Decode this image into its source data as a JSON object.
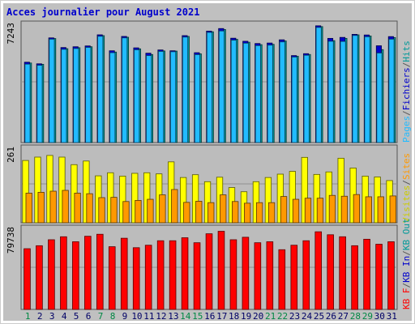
{
  "chart_data": {
    "type": "bar",
    "title": "Acces journalier pour August 2021",
    "categories": [
      "1",
      "2",
      "3",
      "4",
      "5",
      "6",
      "7",
      "8",
      "9",
      "10",
      "11",
      "12",
      "13",
      "14",
      "15",
      "16",
      "17",
      "18",
      "19",
      "20",
      "21",
      "22",
      "23",
      "24",
      "25",
      "26",
      "27",
      "28",
      "29",
      "30",
      "31"
    ],
    "weekend_days": [
      "1",
      "7",
      "8",
      "14",
      "15",
      "21",
      "22",
      "28",
      "29"
    ],
    "panels": [
      {
        "max_label": "7243",
        "ylim": [
          0,
          7243
        ],
        "legend": [
          "Pages",
          "/",
          "Fichiers",
          "/",
          "Hits"
        ],
        "series": [
          {
            "name": "Hits",
            "color": "#009999",
            "values": [
              4940,
              4860,
              6460,
              5830,
              5890,
              5950,
              6640,
              5620,
              6540,
              5820,
              5470,
              5690,
              5680,
              6590,
              5510,
              6880,
              7020,
              6410,
              6230,
              6080,
              6100,
              6310,
              5360,
              5470,
              7200,
              6330,
              6470,
              6690,
              6620,
              5770,
              6520
            ]
          },
          {
            "name": "Fichiers",
            "color": "#0000cc",
            "values": [
              4990,
              4890,
              6500,
              5900,
              5950,
              6000,
              6690,
              5700,
              6590,
              5880,
              5550,
              5750,
              5700,
              6640,
              5580,
              6920,
              7080,
              6480,
              6290,
              6150,
              6180,
              6380,
              5400,
              5520,
              7250,
              6470,
              6530,
              6720,
              6680,
              6010,
              6580
            ]
          },
          {
            "name": "Pages",
            "color": "#22bbff",
            "values": [
              4870,
              4800,
              6420,
              5790,
              5840,
              5910,
              6600,
              5580,
              6500,
              5760,
              5400,
              5660,
              5640,
              6550,
              5460,
              6840,
              6930,
              6360,
              6170,
              6020,
              6050,
              6250,
              5310,
              5420,
              7150,
              6290,
              6280,
              6650,
              6570,
              5560,
              6420
            ]
          }
        ]
      },
      {
        "max_label": "261",
        "ylim": [
          0,
          261
        ],
        "legend": [
          "Visites",
          "/",
          "Sites"
        ],
        "series": [
          {
            "name": "Visites",
            "color": "#ffff00",
            "values": [
              223,
              235,
              241,
              235,
              208,
              221,
              168,
              179,
              167,
              177,
              179,
              175,
              218,
              162,
              172,
              147,
              163,
              126,
              111,
              147,
              162,
              174,
              184,
              234,
              173,
              182,
              231,
              196,
              167,
              164,
              151
            ]
          },
          {
            "name": "Sites",
            "color": "#ff9900",
            "values": [
              106,
              109,
              113,
              116,
              106,
              104,
              90,
              91,
              76,
              80,
              84,
              100,
              119,
              73,
              77,
              72,
              100,
              76,
              70,
              72,
              72,
              94,
              84,
              88,
              88,
              98,
              95,
              101,
              93,
              93,
              96
            ]
          }
        ]
      },
      {
        "max_label": "79738",
        "ylim": [
          0,
          79738
        ],
        "legend": [
          "KB F",
          "/",
          "KB In",
          "/",
          "KB Out"
        ],
        "series": [
          {
            "name": "KB F",
            "color": "#ff0000",
            "values": [
              61000,
              64000,
              70000,
              73000,
              68000,
              73500,
              75500,
              63000,
              71500,
              62000,
              64500,
              69000,
              69000,
              72000,
              67000,
              76000,
              78500,
              70000,
              72500,
              67000,
              68000,
              60000,
              64500,
              69000,
              78000,
              75000,
              73000,
              64000,
              70500,
              65500,
              68000
            ]
          }
        ]
      }
    ],
    "legend_colors": {
      "Pages": "#22bbff",
      "Fichiers": "#0000cc",
      "Hits": "#009999",
      "Visites": "#cccc00",
      "Sites": "#ff9900",
      "KB F": "#ff0000",
      "KB In": "#0000cc",
      "KB Out": "#009999",
      "/": "#555555"
    }
  }
}
